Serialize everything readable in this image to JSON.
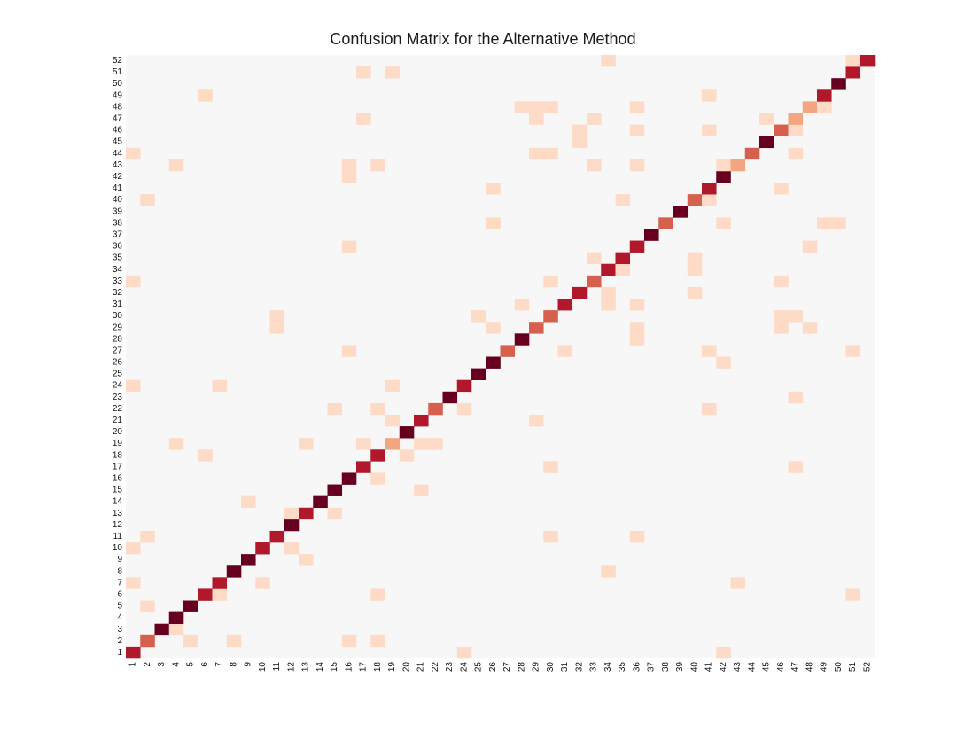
{
  "chart_data": {
    "type": "heatmap",
    "title": "Confusion Matrix for the Alternative Method",
    "x_tick_labels": [
      "1",
      "2",
      "3",
      "4",
      "5",
      "6",
      "7",
      "8",
      "9",
      "10",
      "11",
      "12",
      "13",
      "14",
      "15",
      "16",
      "17",
      "18",
      "19",
      "20",
      "21",
      "22",
      "23",
      "24",
      "25",
      "26",
      "27",
      "28",
      "29",
      "30",
      "31",
      "32",
      "33",
      "34",
      "35",
      "36",
      "37",
      "38",
      "39",
      "40",
      "41",
      "42",
      "43",
      "44",
      "45",
      "46",
      "47",
      "48",
      "49",
      "50",
      "51",
      "52"
    ],
    "y_tick_labels": [
      "1",
      "2",
      "3",
      "4",
      "5",
      "6",
      "7",
      "8",
      "9",
      "10",
      "11",
      "12",
      "13",
      "14",
      "15",
      "16",
      "17",
      "18",
      "19",
      "20",
      "21",
      "22",
      "23",
      "24",
      "25",
      "26",
      "27",
      "28",
      "29",
      "30",
      "31",
      "32",
      "33",
      "34",
      "35",
      "36",
      "37",
      "38",
      "39",
      "40",
      "41",
      "42",
      "43",
      "44",
      "45",
      "46",
      "47",
      "48",
      "49",
      "50",
      "51",
      "52"
    ],
    "y_direction": "bottom-to-top",
    "grid": false,
    "colorbar": false,
    "colors": {
      "background": "#f7f7f7",
      "levels": [
        "#f7f7f7",
        "#fddbc7",
        "#f4a582",
        "#d6604d",
        "#b2182b",
        "#67001f"
      ]
    },
    "value_scale": "intensity level 0 (none) to 5 (darkest); cells not listed are 0",
    "cells": [
      {
        "row": 1,
        "col": 1,
        "level": 4
      },
      {
        "row": 1,
        "col": 24,
        "level": 1
      },
      {
        "row": 1,
        "col": 42,
        "level": 1
      },
      {
        "row": 2,
        "col": 2,
        "level": 3
      },
      {
        "row": 2,
        "col": 5,
        "level": 1
      },
      {
        "row": 2,
        "col": 8,
        "level": 1
      },
      {
        "row": 2,
        "col": 16,
        "level": 1
      },
      {
        "row": 2,
        "col": 18,
        "level": 1
      },
      {
        "row": 3,
        "col": 3,
        "level": 5
      },
      {
        "row": 3,
        "col": 4,
        "level": 1
      },
      {
        "row": 4,
        "col": 4,
        "level": 5
      },
      {
        "row": 5,
        "col": 2,
        "level": 1
      },
      {
        "row": 5,
        "col": 5,
        "level": 5
      },
      {
        "row": 6,
        "col": 6,
        "level": 4
      },
      {
        "row": 6,
        "col": 7,
        "level": 1
      },
      {
        "row": 6,
        "col": 18,
        "level": 1
      },
      {
        "row": 6,
        "col": 51,
        "level": 1
      },
      {
        "row": 7,
        "col": 1,
        "level": 1
      },
      {
        "row": 7,
        "col": 7,
        "level": 4
      },
      {
        "row": 7,
        "col": 10,
        "level": 1
      },
      {
        "row": 7,
        "col": 43,
        "level": 1
      },
      {
        "row": 8,
        "col": 8,
        "level": 5
      },
      {
        "row": 8,
        "col": 34,
        "level": 1
      },
      {
        "row": 9,
        "col": 9,
        "level": 5
      },
      {
        "row": 9,
        "col": 13,
        "level": 1
      },
      {
        "row": 10,
        "col": 1,
        "level": 1
      },
      {
        "row": 10,
        "col": 10,
        "level": 4
      },
      {
        "row": 10,
        "col": 12,
        "level": 1
      },
      {
        "row": 11,
        "col": 2,
        "level": 1
      },
      {
        "row": 11,
        "col": 11,
        "level": 4
      },
      {
        "row": 11,
        "col": 30,
        "level": 1
      },
      {
        "row": 11,
        "col": 36,
        "level": 1
      },
      {
        "row": 12,
        "col": 12,
        "level": 5
      },
      {
        "row": 13,
        "col": 12,
        "level": 1
      },
      {
        "row": 13,
        "col": 13,
        "level": 4
      },
      {
        "row": 13,
        "col": 15,
        "level": 1
      },
      {
        "row": 14,
        "col": 9,
        "level": 1
      },
      {
        "row": 14,
        "col": 14,
        "level": 5
      },
      {
        "row": 15,
        "col": 15,
        "level": 5
      },
      {
        "row": 15,
        "col": 21,
        "level": 1
      },
      {
        "row": 16,
        "col": 16,
        "level": 5
      },
      {
        "row": 16,
        "col": 18,
        "level": 1
      },
      {
        "row": 17,
        "col": 17,
        "level": 4
      },
      {
        "row": 17,
        "col": 30,
        "level": 1
      },
      {
        "row": 17,
        "col": 47,
        "level": 1
      },
      {
        "row": 18,
        "col": 6,
        "level": 1
      },
      {
        "row": 18,
        "col": 18,
        "level": 4
      },
      {
        "row": 18,
        "col": 20,
        "level": 1
      },
      {
        "row": 19,
        "col": 4,
        "level": 1
      },
      {
        "row": 19,
        "col": 13,
        "level": 1
      },
      {
        "row": 19,
        "col": 17,
        "level": 1
      },
      {
        "row": 19,
        "col": 19,
        "level": 2
      },
      {
        "row": 19,
        "col": 21,
        "level": 1
      },
      {
        "row": 19,
        "col": 22,
        "level": 1
      },
      {
        "row": 20,
        "col": 20,
        "level": 5
      },
      {
        "row": 21,
        "col": 19,
        "level": 1
      },
      {
        "row": 21,
        "col": 21,
        "level": 4
      },
      {
        "row": 21,
        "col": 29,
        "level": 1
      },
      {
        "row": 22,
        "col": 15,
        "level": 1
      },
      {
        "row": 22,
        "col": 18,
        "level": 1
      },
      {
        "row": 22,
        "col": 22,
        "level": 3
      },
      {
        "row": 22,
        "col": 24,
        "level": 1
      },
      {
        "row": 22,
        "col": 41,
        "level": 1
      },
      {
        "row": 23,
        "col": 23,
        "level": 5
      },
      {
        "row": 23,
        "col": 47,
        "level": 1
      },
      {
        "row": 24,
        "col": 1,
        "level": 1
      },
      {
        "row": 24,
        "col": 7,
        "level": 1
      },
      {
        "row": 24,
        "col": 19,
        "level": 1
      },
      {
        "row": 24,
        "col": 24,
        "level": 4
      },
      {
        "row": 25,
        "col": 25,
        "level": 5
      },
      {
        "row": 26,
        "col": 26,
        "level": 5
      },
      {
        "row": 26,
        "col": 42,
        "level": 1
      },
      {
        "row": 27,
        "col": 16,
        "level": 1
      },
      {
        "row": 27,
        "col": 27,
        "level": 3
      },
      {
        "row": 27,
        "col": 31,
        "level": 1
      },
      {
        "row": 27,
        "col": 41,
        "level": 1
      },
      {
        "row": 27,
        "col": 51,
        "level": 1
      },
      {
        "row": 28,
        "col": 28,
        "level": 5
      },
      {
        "row": 28,
        "col": 36,
        "level": 1
      },
      {
        "row": 29,
        "col": 11,
        "level": 1
      },
      {
        "row": 29,
        "col": 26,
        "level": 1
      },
      {
        "row": 29,
        "col": 29,
        "level": 3
      },
      {
        "row": 29,
        "col": 36,
        "level": 1
      },
      {
        "row": 29,
        "col": 46,
        "level": 1
      },
      {
        "row": 29,
        "col": 48,
        "level": 1
      },
      {
        "row": 30,
        "col": 11,
        "level": 1
      },
      {
        "row": 30,
        "col": 25,
        "level": 1
      },
      {
        "row": 30,
        "col": 30,
        "level": 3
      },
      {
        "row": 30,
        "col": 46,
        "level": 1
      },
      {
        "row": 30,
        "col": 47,
        "level": 1
      },
      {
        "row": 31,
        "col": 28,
        "level": 1
      },
      {
        "row": 31,
        "col": 31,
        "level": 4
      },
      {
        "row": 31,
        "col": 34,
        "level": 1
      },
      {
        "row": 31,
        "col": 36,
        "level": 1
      },
      {
        "row": 32,
        "col": 32,
        "level": 4
      },
      {
        "row": 32,
        "col": 34,
        "level": 1
      },
      {
        "row": 32,
        "col": 40,
        "level": 1
      },
      {
        "row": 33,
        "col": 1,
        "level": 1
      },
      {
        "row": 33,
        "col": 30,
        "level": 1
      },
      {
        "row": 33,
        "col": 33,
        "level": 3
      },
      {
        "row": 33,
        "col": 46,
        "level": 1
      },
      {
        "row": 34,
        "col": 34,
        "level": 4
      },
      {
        "row": 34,
        "col": 35,
        "level": 1
      },
      {
        "row": 34,
        "col": 40,
        "level": 1
      },
      {
        "row": 35,
        "col": 33,
        "level": 1
      },
      {
        "row": 35,
        "col": 35,
        "level": 4
      },
      {
        "row": 35,
        "col": 40,
        "level": 1
      },
      {
        "row": 36,
        "col": 16,
        "level": 1
      },
      {
        "row": 36,
        "col": 36,
        "level": 4
      },
      {
        "row": 36,
        "col": 48,
        "level": 1
      },
      {
        "row": 37,
        "col": 37,
        "level": 5
      },
      {
        "row": 38,
        "col": 26,
        "level": 1
      },
      {
        "row": 38,
        "col": 38,
        "level": 3
      },
      {
        "row": 38,
        "col": 42,
        "level": 1
      },
      {
        "row": 38,
        "col": 49,
        "level": 1
      },
      {
        "row": 38,
        "col": 50,
        "level": 1
      },
      {
        "row": 39,
        "col": 39,
        "level": 5
      },
      {
        "row": 40,
        "col": 2,
        "level": 1
      },
      {
        "row": 40,
        "col": 35,
        "level": 1
      },
      {
        "row": 40,
        "col": 40,
        "level": 3
      },
      {
        "row": 40,
        "col": 41,
        "level": 1
      },
      {
        "row": 41,
        "col": 26,
        "level": 1
      },
      {
        "row": 41,
        "col": 41,
        "level": 4
      },
      {
        "row": 41,
        "col": 46,
        "level": 1
      },
      {
        "row": 42,
        "col": 16,
        "level": 1
      },
      {
        "row": 42,
        "col": 42,
        "level": 5
      },
      {
        "row": 43,
        "col": 4,
        "level": 1
      },
      {
        "row": 43,
        "col": 16,
        "level": 1
      },
      {
        "row": 43,
        "col": 18,
        "level": 1
      },
      {
        "row": 43,
        "col": 33,
        "level": 1
      },
      {
        "row": 43,
        "col": 36,
        "level": 1
      },
      {
        "row": 43,
        "col": 42,
        "level": 1
      },
      {
        "row": 43,
        "col": 43,
        "level": 2
      },
      {
        "row": 44,
        "col": 1,
        "level": 1
      },
      {
        "row": 44,
        "col": 29,
        "level": 1
      },
      {
        "row": 44,
        "col": 30,
        "level": 1
      },
      {
        "row": 44,
        "col": 44,
        "level": 3
      },
      {
        "row": 44,
        "col": 47,
        "level": 1
      },
      {
        "row": 45,
        "col": 32,
        "level": 1
      },
      {
        "row": 45,
        "col": 45,
        "level": 5
      },
      {
        "row": 46,
        "col": 32,
        "level": 1
      },
      {
        "row": 46,
        "col": 36,
        "level": 1
      },
      {
        "row": 46,
        "col": 41,
        "level": 1
      },
      {
        "row": 46,
        "col": 46,
        "level": 3
      },
      {
        "row": 46,
        "col": 47,
        "level": 1
      },
      {
        "row": 47,
        "col": 17,
        "level": 1
      },
      {
        "row": 47,
        "col": 29,
        "level": 1
      },
      {
        "row": 47,
        "col": 33,
        "level": 1
      },
      {
        "row": 47,
        "col": 45,
        "level": 1
      },
      {
        "row": 47,
        "col": 47,
        "level": 2
      },
      {
        "row": 48,
        "col": 28,
        "level": 1
      },
      {
        "row": 48,
        "col": 29,
        "level": 1
      },
      {
        "row": 48,
        "col": 30,
        "level": 1
      },
      {
        "row": 48,
        "col": 36,
        "level": 1
      },
      {
        "row": 48,
        "col": 48,
        "level": 2
      },
      {
        "row": 48,
        "col": 49,
        "level": 1
      },
      {
        "row": 49,
        "col": 6,
        "level": 1
      },
      {
        "row": 49,
        "col": 41,
        "level": 1
      },
      {
        "row": 49,
        "col": 49,
        "level": 4
      },
      {
        "row": 50,
        "col": 50,
        "level": 5
      },
      {
        "row": 51,
        "col": 17,
        "level": 1
      },
      {
        "row": 51,
        "col": 19,
        "level": 1
      },
      {
        "row": 51,
        "col": 51,
        "level": 4
      },
      {
        "row": 52,
        "col": 34,
        "level": 1
      },
      {
        "row": 52,
        "col": 51,
        "level": 1
      },
      {
        "row": 52,
        "col": 52,
        "level": 4
      }
    ]
  }
}
